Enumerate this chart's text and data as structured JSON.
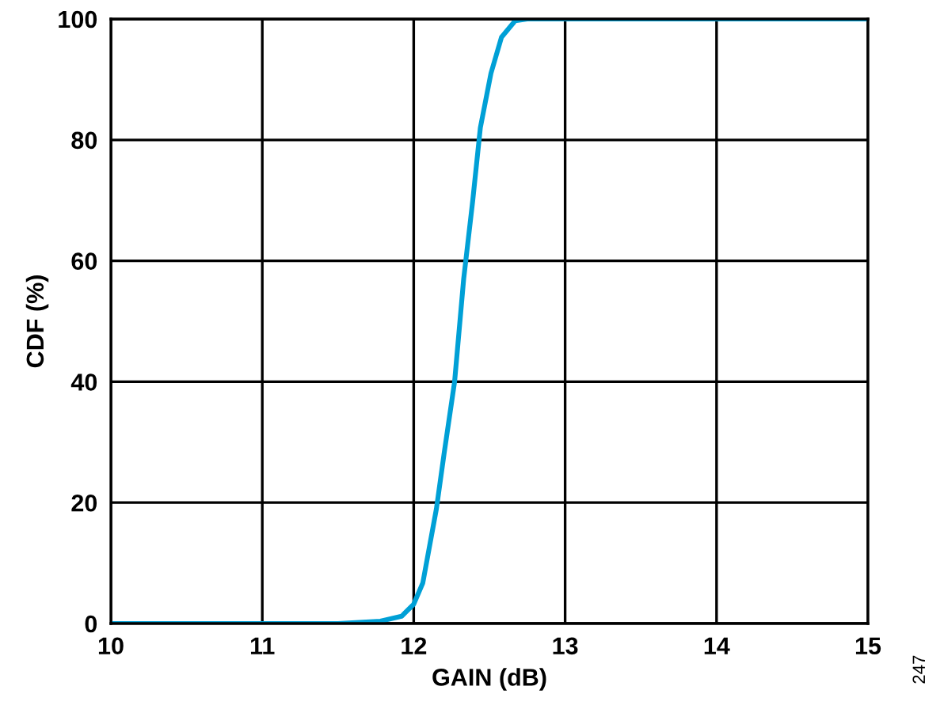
{
  "chart_data": {
    "type": "line",
    "xlabel": "GAIN (dB)",
    "ylabel": "CDF (%)",
    "x": [
      10,
      11.5,
      11.78,
      11.92,
      12.0,
      12.06,
      12.15,
      12.2,
      12.27,
      12.33,
      12.39,
      12.44,
      12.51,
      12.58,
      12.67,
      12.75,
      15
    ],
    "series": [
      {
        "color": "#00a0d6",
        "values": [
          0,
          0,
          0.4,
          1.2,
          3.2,
          6.7,
          19,
          28,
          40,
          57,
          70,
          82,
          91,
          97,
          99.7,
          100,
          100
        ]
      }
    ],
    "xlim": [
      10,
      15
    ],
    "xticks": [
      10,
      11,
      12,
      13,
      14,
      15
    ],
    "ylim": [
      0,
      100
    ],
    "yticks": [
      0,
      20,
      40,
      60,
      80,
      100
    ],
    "grid": true,
    "annotations": [
      "247"
    ]
  }
}
